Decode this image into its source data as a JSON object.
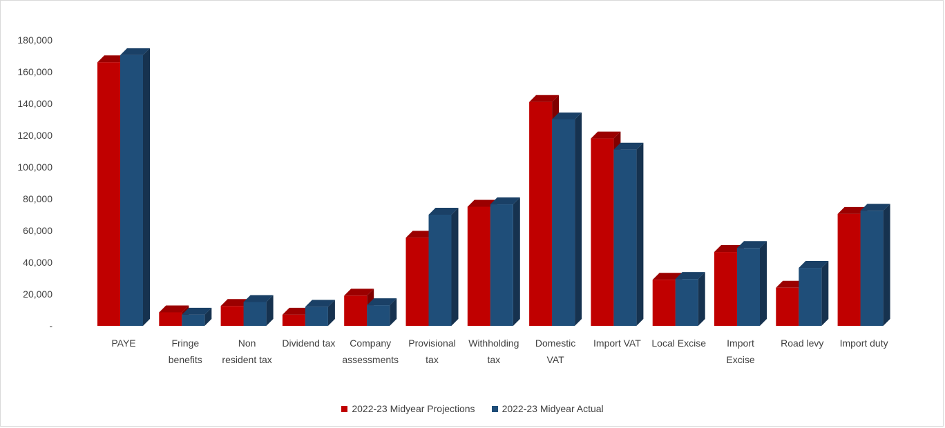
{
  "chart_data": {
    "type": "bar",
    "title": "",
    "xlabel": "",
    "ylabel": "",
    "ylim": [
      0,
      180000
    ],
    "yticks": [
      0,
      20000,
      40000,
      60000,
      80000,
      100000,
      120000,
      140000,
      160000,
      180000
    ],
    "ytick_labels": [
      "-",
      "20,000",
      "40,000",
      "60,000",
      "80,000",
      "100,000",
      "120,000",
      "140,000",
      "160,000",
      "180,000"
    ],
    "categories": [
      "PAYE",
      "Fringe benefits",
      "Non resident tax",
      "Dividend tax",
      "Company assessments",
      "Provisional tax",
      "Withholding tax",
      "Domestic VAT",
      "Import VAT",
      "Local Excise",
      "Import Excise",
      "Road levy",
      "Import duty"
    ],
    "category_lines": [
      [
        "PAYE"
      ],
      [
        "Fringe",
        "benefits"
      ],
      [
        "Non",
        "resident tax"
      ],
      [
        "Dividend tax"
      ],
      [
        "Company",
        "assessments"
      ],
      [
        "Provisional",
        "tax"
      ],
      [
        "Withholding",
        "tax"
      ],
      [
        "Domestic",
        "VAT"
      ],
      [
        "Import VAT"
      ],
      [
        "Local Excise"
      ],
      [
        "Import",
        "Excise"
      ],
      [
        "Road levy"
      ],
      [
        "Import duty"
      ]
    ],
    "series": [
      {
        "name": "2022-23 Midyear Projections",
        "color": "#c00000",
        "values": [
          166000,
          8500,
          12500,
          7000,
          19000,
          55500,
          75000,
          141000,
          118000,
          29000,
          46500,
          24000,
          70500
        ]
      },
      {
        "name": "2022-23 Midyear Actual",
        "color": "#1f4e79",
        "values": [
          170500,
          7000,
          15000,
          12000,
          13000,
          70000,
          76500,
          130000,
          111000,
          29500,
          49000,
          36500,
          72500
        ]
      }
    ],
    "grid": false,
    "legend_position": "bottom",
    "style": "3d-column"
  }
}
